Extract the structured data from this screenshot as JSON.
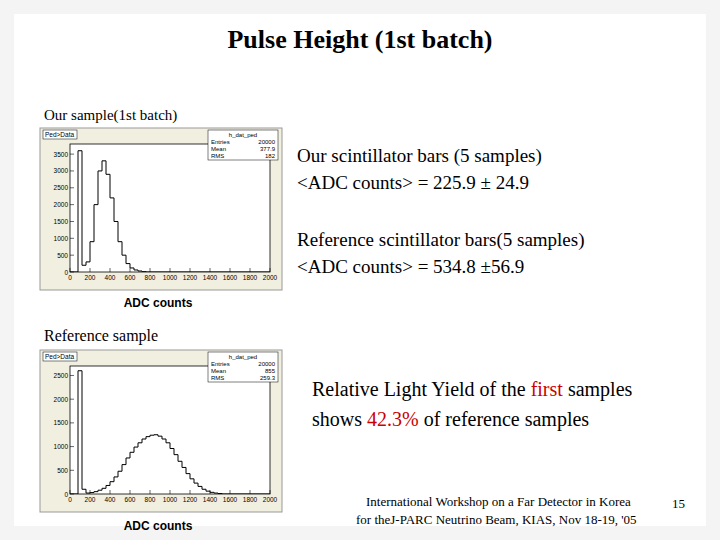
{
  "slide": {
    "title": "Pulse Height (1st batch)",
    "sample_label": "Our sample(1st batch)",
    "reference_label": "Reference sample",
    "texts": [
      "Our scintillator bars (5 samples)",
      "<ADC counts> = 225.9 ± 24.9",
      "Reference scintillator bars(5 samples)",
      "<ADC counts> = 534.8 ±56.9"
    ],
    "conclusion": [
      {
        "segments": [
          {
            "text": "Relative Light Yield of the "
          },
          {
            "text": "first",
            "color": "#cc0000"
          },
          {
            "text": " samples"
          }
        ]
      },
      {
        "segments": [
          {
            "text": "shows "
          },
          {
            "text": "42.3%",
            "color": "#cc0000"
          },
          {
            "text": " of reference samples"
          }
        ]
      }
    ],
    "footer": [
      "International Workshop on a Far Detector in Korea",
      "for theJ-PARC Neutrino Beam,  KIAS,  Nov 18-19, '05"
    ],
    "page_number": "15"
  },
  "chart_data": [
    {
      "type": "histogram",
      "title": "Ped>Data",
      "x_label": "ADC counts",
      "color": "#000000",
      "bins": [
        0,
        40,
        80,
        120,
        160,
        200,
        240,
        280,
        320,
        360,
        400,
        440,
        480,
        520,
        560,
        600,
        640,
        680,
        720,
        760,
        800,
        840,
        880,
        920,
        960,
        1000,
        1040,
        1080,
        1120,
        1160,
        1200,
        1240,
        1280,
        1320,
        1360,
        1400,
        1440,
        1480,
        1520,
        1560,
        1600,
        1640,
        1680,
        1720,
        1760,
        1800,
        1840,
        1880,
        1920,
        1960,
        2000
      ],
      "values": [
        0,
        0,
        3600,
        200,
        300,
        900,
        2000,
        3000,
        3300,
        2900,
        2200,
        1500,
        900,
        500,
        250,
        120,
        60,
        30,
        10,
        0,
        0,
        0,
        0,
        0,
        0,
        0,
        0,
        0,
        0,
        0,
        0,
        0,
        0,
        0,
        0,
        0,
        0,
        0,
        0,
        0,
        0,
        0,
        0,
        0,
        0,
        0,
        0,
        0,
        0,
        0
      ],
      "xlim": [
        0,
        2000
      ],
      "xticks": [
        0,
        200,
        400,
        600,
        800,
        1000,
        1200,
        1400,
        1600,
        1800,
        2000
      ],
      "ylim": [
        0,
        3800
      ],
      "yticks": [
        0,
        500,
        1000,
        1500,
        2000,
        2500,
        3000,
        3500
      ],
      "stats": {
        "name": "h_dat_ped",
        "entries": [
          {
            "label": "Entries",
            "value": 20000
          },
          {
            "label": "Mean",
            "value": 377.9
          },
          {
            "label": "RMS",
            "value": 182.0
          }
        ]
      }
    },
    {
      "type": "histogram",
      "title": "Ped>Data",
      "x_label": "ADC counts",
      "color": "#000000",
      "bins": [
        0,
        40,
        80,
        120,
        160,
        200,
        240,
        280,
        320,
        360,
        400,
        440,
        480,
        520,
        560,
        600,
        640,
        680,
        720,
        760,
        800,
        840,
        880,
        920,
        960,
        1000,
        1040,
        1080,
        1120,
        1160,
        1200,
        1240,
        1280,
        1320,
        1360,
        1400,
        1440,
        1480,
        1520,
        1560,
        1600,
        1640,
        1680,
        1720,
        1760,
        1800,
        1840,
        1880,
        1920,
        1960,
        2000
      ],
      "values": [
        0,
        0,
        2600,
        100,
        20,
        30,
        50,
        80,
        120,
        180,
        260,
        360,
        480,
        620,
        760,
        880,
        990,
        1080,
        1160,
        1210,
        1240,
        1250,
        1220,
        1160,
        1080,
        960,
        830,
        690,
        560,
        430,
        320,
        230,
        160,
        100,
        60,
        35,
        20,
        10,
        0,
        0,
        0,
        0,
        0,
        0,
        0,
        0,
        0,
        0,
        0,
        0
      ],
      "xlim": [
        0,
        2000
      ],
      "xticks": [
        0,
        200,
        400,
        600,
        800,
        1000,
        1200,
        1400,
        1600,
        1800,
        2000
      ],
      "ylim": [
        0,
        2700
      ],
      "yticks": [
        0,
        500,
        1000,
        1500,
        2000,
        2500
      ],
      "stats": {
        "name": "h_dat_ped",
        "entries": [
          {
            "label": "Entries",
            "value": 20000
          },
          {
            "label": "Mean",
            "value": 855
          },
          {
            "label": "RMS",
            "value": 259.3
          }
        ]
      }
    }
  ]
}
